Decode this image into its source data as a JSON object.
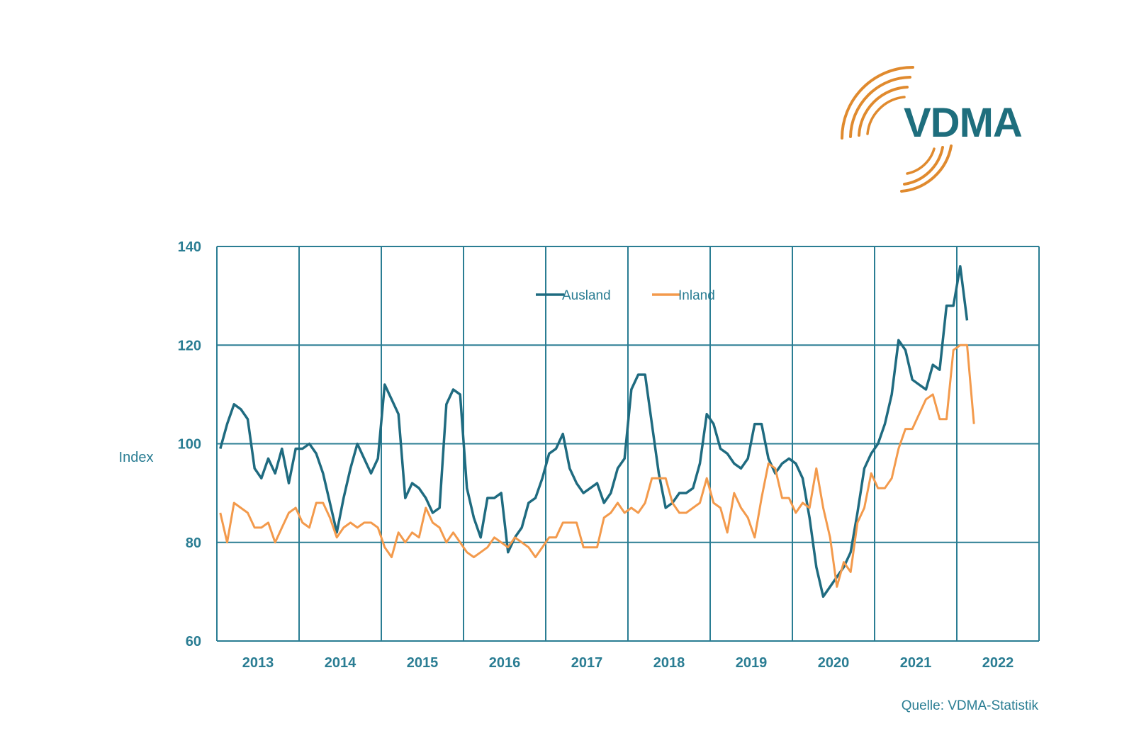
{
  "logo": {
    "text": "VDMA",
    "colors": {
      "arcs": "#e08a2e",
      "text": "#1e6e7d"
    }
  },
  "source": "Quelle: VDMA-Statistik",
  "chart_data": {
    "type": "line",
    "title": "",
    "xlabel": "",
    "ylabel": "Index",
    "ylim": [
      60,
      140
    ],
    "yticks": [
      60,
      80,
      100,
      120,
      140
    ],
    "xlim": [
      2013,
      2023
    ],
    "xtick_labels": [
      "2013",
      "2014",
      "2015",
      "2016",
      "2017",
      "2018",
      "2019",
      "2020",
      "2021",
      "2022"
    ],
    "grid": true,
    "legend_position": "top-center",
    "colors": {
      "Ausland": "#1f6b80",
      "Inland": "#f39a4c",
      "grid": "#2a7d93"
    },
    "x_start": "2013-01",
    "x_step": "month",
    "series": [
      {
        "name": "Ausland",
        "values": [
          99,
          104,
          108,
          107,
          105,
          95,
          93,
          97,
          94,
          99,
          92,
          99,
          99,
          100,
          98,
          94,
          88,
          82,
          89,
          95,
          100,
          97,
          94,
          97,
          112,
          109,
          106,
          89,
          92,
          91,
          89,
          86,
          87,
          108,
          111,
          110,
          91,
          85,
          81,
          89,
          89,
          90,
          78,
          81,
          83,
          88,
          89,
          93,
          98,
          99,
          102,
          95,
          92,
          90,
          91,
          92,
          88,
          90,
          95,
          97,
          111,
          114,
          114,
          104,
          94,
          87,
          88,
          90,
          90,
          91,
          96,
          106,
          104,
          99,
          98,
          96,
          95,
          97,
          104,
          104,
          97,
          94,
          96,
          97,
          96,
          93,
          85,
          75,
          69,
          71,
          73,
          75,
          78,
          86,
          95,
          98,
          100,
          104,
          110,
          121,
          119,
          113,
          112,
          111,
          116,
          115,
          128,
          128,
          136,
          125
        ]
      },
      {
        "name": "Inland",
        "values": [
          86,
          80,
          88,
          87,
          86,
          83,
          83,
          84,
          80,
          83,
          86,
          87,
          84,
          83,
          88,
          88,
          85,
          81,
          83,
          84,
          83,
          84,
          84,
          83,
          79,
          77,
          82,
          80,
          82,
          81,
          87,
          84,
          83,
          80,
          82,
          80,
          78,
          77,
          78,
          79,
          81,
          80,
          79,
          81,
          80,
          79,
          77,
          79,
          81,
          81,
          84,
          84,
          84,
          79,
          79,
          79,
          85,
          86,
          88,
          86,
          87,
          86,
          88,
          93,
          93,
          93,
          88,
          86,
          86,
          87,
          88,
          93,
          88,
          87,
          82,
          90,
          87,
          85,
          81,
          89,
          96,
          95,
          89,
          89,
          86,
          88,
          87,
          95,
          87,
          81,
          71,
          76,
          74,
          84,
          87,
          94,
          91,
          91,
          93,
          99,
          103,
          103,
          106,
          109,
          110,
          105,
          105,
          119,
          120,
          120,
          104
        ]
      }
    ]
  }
}
